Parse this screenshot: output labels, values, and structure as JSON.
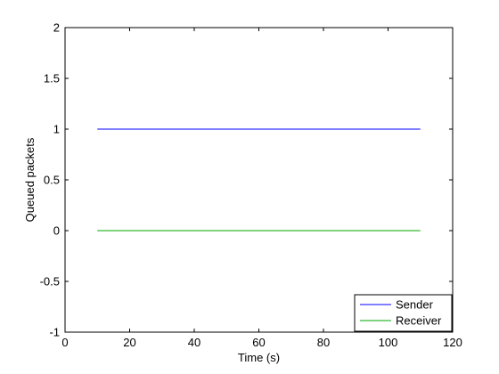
{
  "chart_data": {
    "type": "line",
    "title": "",
    "xlabel": "Time (s)",
    "ylabel": "Queued packets",
    "xlim": [
      0,
      120
    ],
    "ylim": [
      -1,
      2
    ],
    "xticks": [
      0,
      20,
      40,
      60,
      80,
      100,
      120
    ],
    "yticks": [
      -1,
      -0.5,
      0,
      0.5,
      1,
      1.5,
      2
    ],
    "xtick_labels": [
      "0",
      "20",
      "40",
      "60",
      "80",
      "100",
      "120"
    ],
    "ytick_labels": [
      "-1",
      "-0.5",
      "0",
      "0.5",
      "1",
      "1.5",
      "2"
    ],
    "grid": false,
    "legend_position": "bottom-right",
    "series": [
      {
        "name": "Sender",
        "color": "#0000ff",
        "x": [
          10,
          110
        ],
        "y": [
          1,
          1
        ]
      },
      {
        "name": "Receiver",
        "color": "#00aa00",
        "x": [
          10,
          110
        ],
        "y": [
          0,
          0
        ]
      }
    ]
  }
}
